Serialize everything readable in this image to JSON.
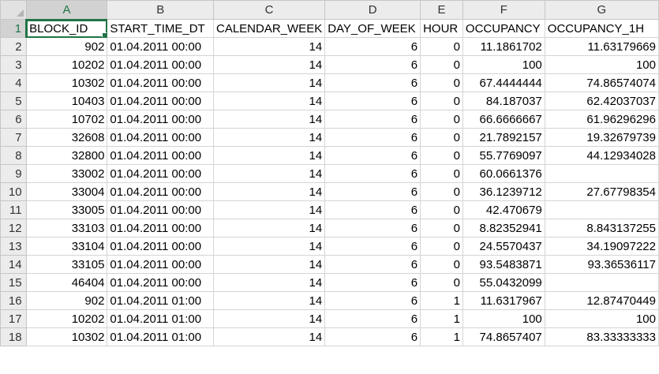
{
  "columns": [
    "A",
    "B",
    "C",
    "D",
    "E",
    "F",
    "G"
  ],
  "rows": [
    {
      "n": "1",
      "cells": [
        "BLOCK_ID",
        "START_TIME_DT",
        "CALENDAR_WEEK",
        "DAY_OF_WEEK",
        "HOUR",
        "OCCUPANCY",
        "OCCUPANCY_1H"
      ]
    },
    {
      "n": "2",
      "cells": [
        "902",
        "01.04.2011 00:00",
        "14",
        "6",
        "0",
        "11.1861702",
        "11.63179669"
      ]
    },
    {
      "n": "3",
      "cells": [
        "10202",
        "01.04.2011 00:00",
        "14",
        "6",
        "0",
        "100",
        "100"
      ]
    },
    {
      "n": "4",
      "cells": [
        "10302",
        "01.04.2011 00:00",
        "14",
        "6",
        "0",
        "67.4444444",
        "74.86574074"
      ]
    },
    {
      "n": "5",
      "cells": [
        "10403",
        "01.04.2011 00:00",
        "14",
        "6",
        "0",
        "84.187037",
        "62.42037037"
      ]
    },
    {
      "n": "6",
      "cells": [
        "10702",
        "01.04.2011 00:00",
        "14",
        "6",
        "0",
        "66.6666667",
        "61.96296296"
      ]
    },
    {
      "n": "7",
      "cells": [
        "32608",
        "01.04.2011 00:00",
        "14",
        "6",
        "0",
        "21.7892157",
        "19.32679739"
      ]
    },
    {
      "n": "8",
      "cells": [
        "32800",
        "01.04.2011 00:00",
        "14",
        "6",
        "0",
        "55.7769097",
        "44.12934028"
      ]
    },
    {
      "n": "9",
      "cells": [
        "33002",
        "01.04.2011 00:00",
        "14",
        "6",
        "0",
        "60.0661376",
        ""
      ]
    },
    {
      "n": "10",
      "cells": [
        "33004",
        "01.04.2011 00:00",
        "14",
        "6",
        "0",
        "36.1239712",
        "27.67798354"
      ]
    },
    {
      "n": "11",
      "cells": [
        "33005",
        "01.04.2011 00:00",
        "14",
        "6",
        "0",
        "42.470679",
        ""
      ]
    },
    {
      "n": "12",
      "cells": [
        "33103",
        "01.04.2011 00:00",
        "14",
        "6",
        "0",
        "8.82352941",
        "8.843137255"
      ]
    },
    {
      "n": "13",
      "cells": [
        "33104",
        "01.04.2011 00:00",
        "14",
        "6",
        "0",
        "24.5570437",
        "34.19097222"
      ]
    },
    {
      "n": "14",
      "cells": [
        "33105",
        "01.04.2011 00:00",
        "14",
        "6",
        "0",
        "93.5483871",
        "93.36536117"
      ]
    },
    {
      "n": "15",
      "cells": [
        "46404",
        "01.04.2011 00:00",
        "14",
        "6",
        "0",
        "55.0432099",
        ""
      ]
    },
    {
      "n": "16",
      "cells": [
        "902",
        "01.04.2011 01:00",
        "14",
        "6",
        "1",
        "11.6317967",
        "12.87470449"
      ]
    },
    {
      "n": "17",
      "cells": [
        "10202",
        "01.04.2011 01:00",
        "14",
        "6",
        "1",
        "100",
        "100"
      ]
    },
    {
      "n": "18",
      "cells": [
        "10302",
        "01.04.2011 01:00",
        "14",
        "6",
        "1",
        "74.8657407",
        "83.33333333"
      ]
    }
  ],
  "colors": {
    "selection": "#217346",
    "header_bg": "#ececec",
    "grid": "#d4d4d4"
  }
}
